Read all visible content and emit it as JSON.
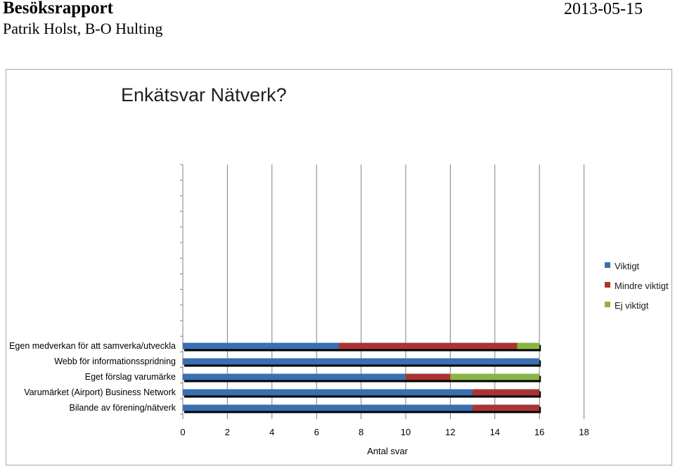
{
  "header": {
    "title": "Besöksrapport",
    "authors": "Patrik Holst, B-O Hulting",
    "date": "2013-05-15"
  },
  "chart_data": {
    "type": "bar",
    "orientation": "horizontal",
    "stacked": true,
    "title": "Enkätsvar Nätverk?",
    "xlabel": "Antal svar",
    "ylabel": "",
    "xlim": [
      0,
      18
    ],
    "xticks": [
      0,
      2,
      4,
      6,
      8,
      10,
      12,
      14,
      16,
      18
    ],
    "grid": "vertical",
    "legend_position": "right",
    "categories": [
      "Egen medverkan för att samverka/utveckla",
      "Webb för informationsspridning",
      "Eget förslag varumärke",
      "Varumärket (Airport) Business Network",
      "Bilande av förening/nätverk"
    ],
    "series": [
      {
        "name": "Viktigt",
        "color": "#3a6fb0",
        "values": [
          7,
          16,
          10,
          13,
          13
        ]
      },
      {
        "name": "Mindre viktigt",
        "color": "#a83532",
        "values": [
          8,
          0,
          2,
          3,
          3
        ]
      },
      {
        "name": "Ej viktigt",
        "color": "#8ab443",
        "values": [
          1,
          0,
          4,
          0,
          0
        ]
      }
    ]
  }
}
